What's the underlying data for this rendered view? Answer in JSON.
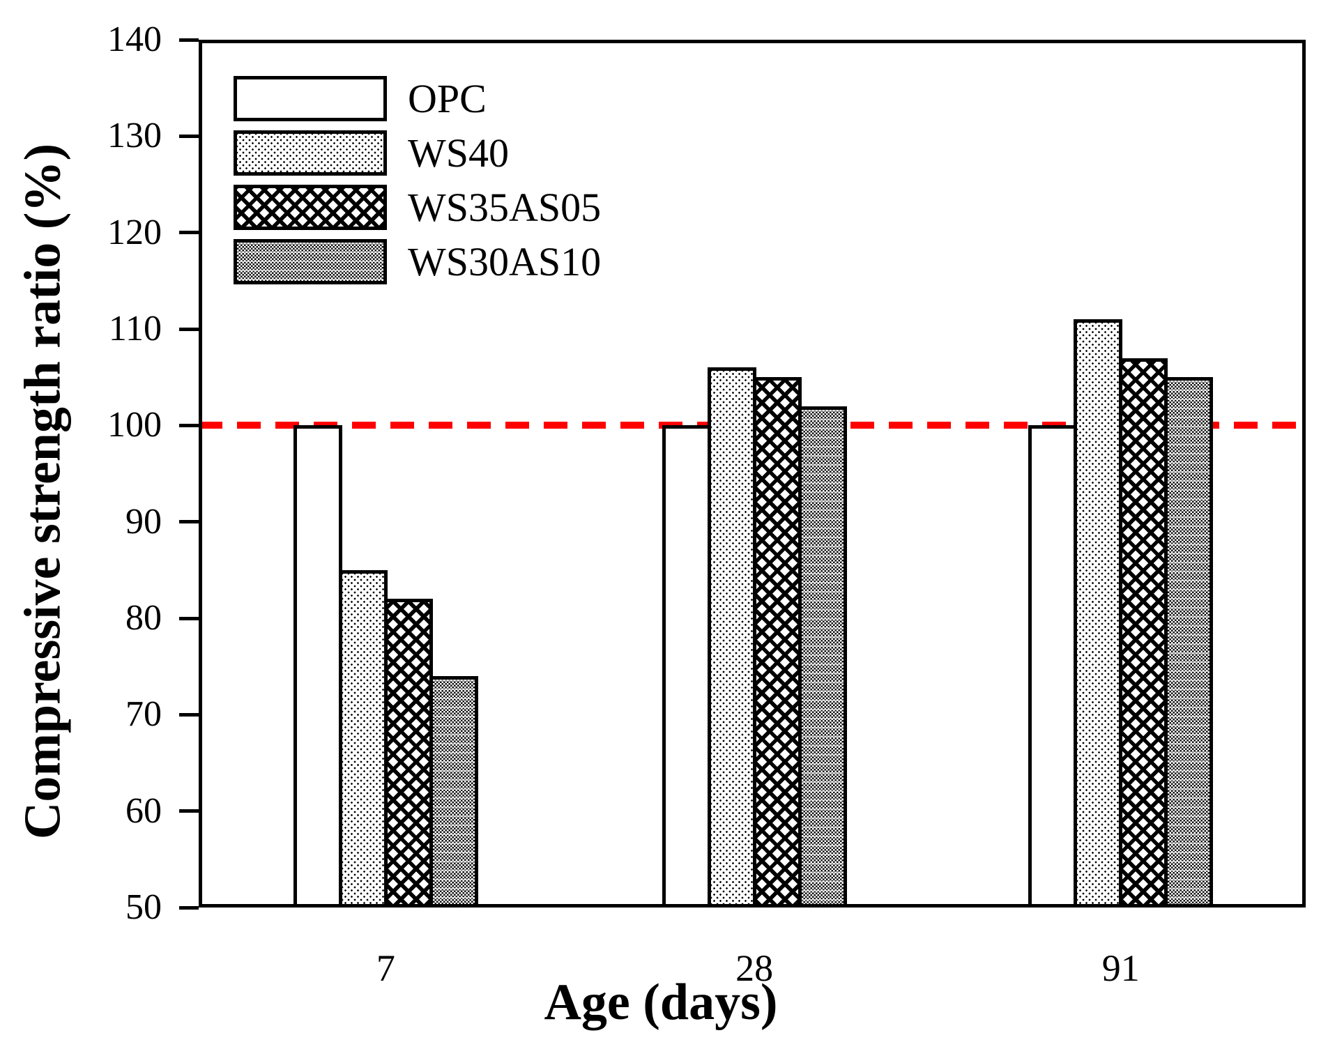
{
  "chart_data": {
    "type": "bar",
    "title": "",
    "xlabel": "Age (days)",
    "ylabel": "Compressive strength ratio (%)",
    "categories": [
      "7",
      "28",
      "91"
    ],
    "series": [
      {
        "name": "OPC",
        "pattern": "plain-white",
        "values": [
          100,
          100,
          100
        ]
      },
      {
        "name": "WS40",
        "pattern": "fine-dots",
        "values": [
          85,
          106,
          111
        ]
      },
      {
        "name": "WS35AS05",
        "pattern": "diamond-crosshatch",
        "values": [
          82,
          105,
          107
        ]
      },
      {
        "name": "WS30AS10",
        "pattern": "gray-checker",
        "values": [
          74,
          102,
          105
        ]
      }
    ],
    "ylim": [
      50,
      140
    ],
    "yticks": [
      50,
      60,
      70,
      80,
      90,
      100,
      110,
      120,
      130,
      140
    ],
    "reference_line": {
      "value": 100,
      "style": "dashed",
      "color": "#ff0000"
    },
    "legend_position": "upper-left",
    "grid": false,
    "axis_color": "#000000",
    "background_color": "#ffffff"
  }
}
